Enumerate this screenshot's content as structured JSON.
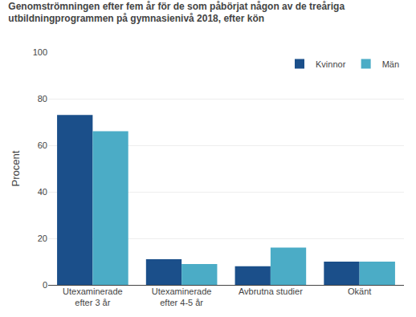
{
  "chart_data": {
    "type": "bar",
    "title": "Genomströmningen efter fem år för de som påbörjat någon av de treåriga\nutbildningprogrammen på gymnasienivå 2018, efter kön",
    "ylabel": "Procent",
    "categories": [
      "Utexaminerade\nefter 3 år",
      "Utexaminerade\nefter 4-5 år",
      "Avbrutna studier",
      "Okänt"
    ],
    "series": [
      {
        "name": "Kvinnor",
        "color": "#1b4f8a",
        "values": [
          73,
          11,
          8,
          10
        ]
      },
      {
        "name": "Män",
        "color": "#4bacc6",
        "values": [
          66,
          9,
          16,
          10
        ]
      }
    ],
    "ylim": [
      0,
      100
    ],
    "yticks": [
      0,
      20,
      40,
      60,
      80,
      100
    ],
    "grid": true,
    "legend": "upper right"
  }
}
